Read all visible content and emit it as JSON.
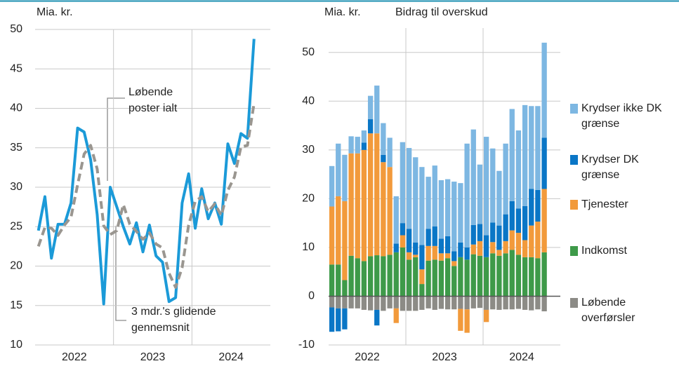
{
  "chart_data": [
    {
      "type": "line",
      "y_label": "Mia. kr.",
      "x": [
        2022.042,
        2022.125,
        2022.208,
        2022.292,
        2022.375,
        2022.458,
        2022.542,
        2022.625,
        2022.708,
        2022.792,
        2022.875,
        2022.958,
        2023.042,
        2023.125,
        2023.208,
        2023.292,
        2023.375,
        2023.458,
        2023.542,
        2023.625,
        2023.708,
        2023.792,
        2023.875,
        2023.958,
        2024.042,
        2024.125,
        2024.208,
        2024.292,
        2024.375,
        2024.458,
        2024.542,
        2024.625,
        2024.708,
        2024.792
      ],
      "xlim": [
        2022,
        2025
      ],
      "xticks": [
        {
          "value": 2022.5,
          "label": "2022"
        },
        {
          "value": 2023.5,
          "label": "2023"
        },
        {
          "value": 2024.5,
          "label": "2024"
        }
      ],
      "x_gridlines": [
        2023,
        2024
      ],
      "ylim": [
        10,
        50
      ],
      "yticks": [
        10,
        15,
        20,
        25,
        30,
        35,
        40,
        45,
        50
      ],
      "grid": true,
      "series": [
        {
          "name": "Løbende poster ialt",
          "color": "#1b9ad8",
          "dashed": false,
          "values": [
            24.5,
            28.8,
            21.0,
            25.3,
            25.3,
            28.0,
            37.5,
            37.0,
            33.5,
            26.5,
            15.2,
            30.0,
            27.5,
            25.0,
            22.8,
            25.5,
            21.8,
            25.2,
            21.3,
            20.5,
            15.5,
            16.0,
            28.0,
            31.7,
            24.8,
            29.8,
            26.0,
            28.0,
            25.3,
            35.5,
            33.0,
            36.8,
            36.2,
            48.8
          ]
        },
        {
          "name": "3 mdr.'s glidende gennemsnit",
          "color": "#9a9690",
          "dashed": true,
          "values": [
            22.5,
            24.9,
            24.8,
            23.9,
            25.2,
            26.2,
            30.3,
            34.2,
            35.3,
            32.3,
            25.1,
            24.0,
            24.5,
            27.8,
            25.3,
            24.4,
            23.4,
            24.2,
            22.8,
            22.3,
            19.1,
            17.3,
            19.8,
            25.2,
            28.2,
            28.8,
            26.9,
            27.9,
            26.4,
            29.6,
            31.3,
            35.1,
            35.3,
            40.6
          ]
        }
      ],
      "annotations": [
        {
          "lines": [
            "Løbende",
            "poster ialt"
          ]
        },
        {
          "lines": [
            "3 mdr.'s glidende",
            "gennemsnit"
          ]
        }
      ]
    },
    {
      "type": "bar",
      "stacked": true,
      "y_label": "Mia. kr.",
      "subtitle": "Bidrag til overskud",
      "x": [
        2022.042,
        2022.125,
        2022.208,
        2022.292,
        2022.375,
        2022.458,
        2022.542,
        2022.625,
        2022.708,
        2022.792,
        2022.875,
        2022.958,
        2023.042,
        2023.125,
        2023.208,
        2023.292,
        2023.375,
        2023.458,
        2023.542,
        2023.625,
        2023.708,
        2023.792,
        2023.875,
        2023.958,
        2024.042,
        2024.125,
        2024.208,
        2024.292,
        2024.375,
        2024.458,
        2024.542,
        2024.625,
        2024.708,
        2024.792
      ],
      "xlim": [
        2022,
        2025
      ],
      "xticks": [
        {
          "value": 2022.5,
          "label": "2022"
        },
        {
          "value": 2023.5,
          "label": "2023"
        },
        {
          "value": 2024.5,
          "label": "2024"
        }
      ],
      "x_gridlines": [
        2023,
        2024
      ],
      "ylim": [
        -10,
        55
      ],
      "yticks": [
        -10,
        0,
        10,
        20,
        30,
        40,
        50
      ],
      "grid": true,
      "series": [
        {
          "name": "Krydser ikke DK grænse",
          "color": "#7db7e2",
          "values": [
            8.3,
            10.8,
            9.5,
            3.5,
            3.4,
            2.5,
            4.8,
            9.8,
            6.5,
            6.0,
            9.7,
            16.6,
            16.6,
            17.5,
            16.0,
            10.7,
            12.5,
            12.0,
            11.7,
            14.3,
            12.2,
            21.3,
            19.6,
            12.2,
            20.2,
            15.2,
            11.2,
            14.5,
            18.9,
            16.0,
            20.7,
            17.0,
            17.2,
            19.5
          ]
        },
        {
          "name": "Krydser DK grænse",
          "color": "#0a76c6",
          "values": [
            -5.0,
            -4.7,
            -4.3,
            0,
            0,
            1.5,
            2.9,
            -3.2,
            1.5,
            0,
            1.8,
            2.5,
            4.8,
            2.5,
            5.0,
            3.5,
            4.0,
            3.0,
            3.5,
            2.0,
            3.0,
            2.5,
            4.0,
            3.5,
            4.5,
            4.0,
            5.0,
            5.5,
            6.0,
            5.0,
            7.0,
            7.5,
            6.5,
            10.5
          ]
        },
        {
          "name": "Tjenester",
          "color": "#f29a3b",
          "values": [
            11.9,
            14.0,
            16.2,
            21.0,
            21.5,
            22.8,
            25.2,
            25.0,
            19.3,
            18.0,
            -3.0,
            2.5,
            1.5,
            0.5,
            3.0,
            3.0,
            2.8,
            1.5,
            1.0,
            1.0,
            -4.5,
            -4.8,
            2.0,
            3.0,
            -2.5,
            2.3,
            1.2,
            2.5,
            4.0,
            4.5,
            3.5,
            6.5,
            7.5,
            13.0
          ]
        },
        {
          "name": "Indkomst",
          "color": "#3e9a49",
          "values": [
            6.5,
            6.5,
            3.3,
            8.3,
            7.8,
            7.2,
            8.2,
            8.4,
            8.2,
            8.5,
            9.0,
            10.0,
            7.5,
            8.0,
            2.5,
            7.3,
            7.5,
            7.3,
            7.8,
            6.2,
            8.0,
            7.5,
            8.6,
            8.3,
            8.0,
            8.8,
            8.3,
            8.8,
            9.5,
            8.5,
            8.0,
            8.0,
            7.8,
            9.0
          ]
        },
        {
          "name": "Løbende overførsler",
          "color": "#8c8b86",
          "values": [
            -2.3,
            -2.5,
            -2.5,
            -2.5,
            -2.5,
            -2.8,
            -2.9,
            -2.8,
            -3.0,
            -2.5,
            -2.5,
            -3.0,
            -3.0,
            -3.0,
            -2.8,
            -2.5,
            -2.8,
            -2.6,
            -2.7,
            -2.7,
            -2.6,
            -2.7,
            -2.5,
            -2.4,
            -2.8,
            -2.7,
            -2.8,
            -2.7,
            -2.7,
            -2.6,
            -2.8,
            -2.9,
            -2.7,
            -3.1
          ]
        }
      ]
    }
  ]
}
